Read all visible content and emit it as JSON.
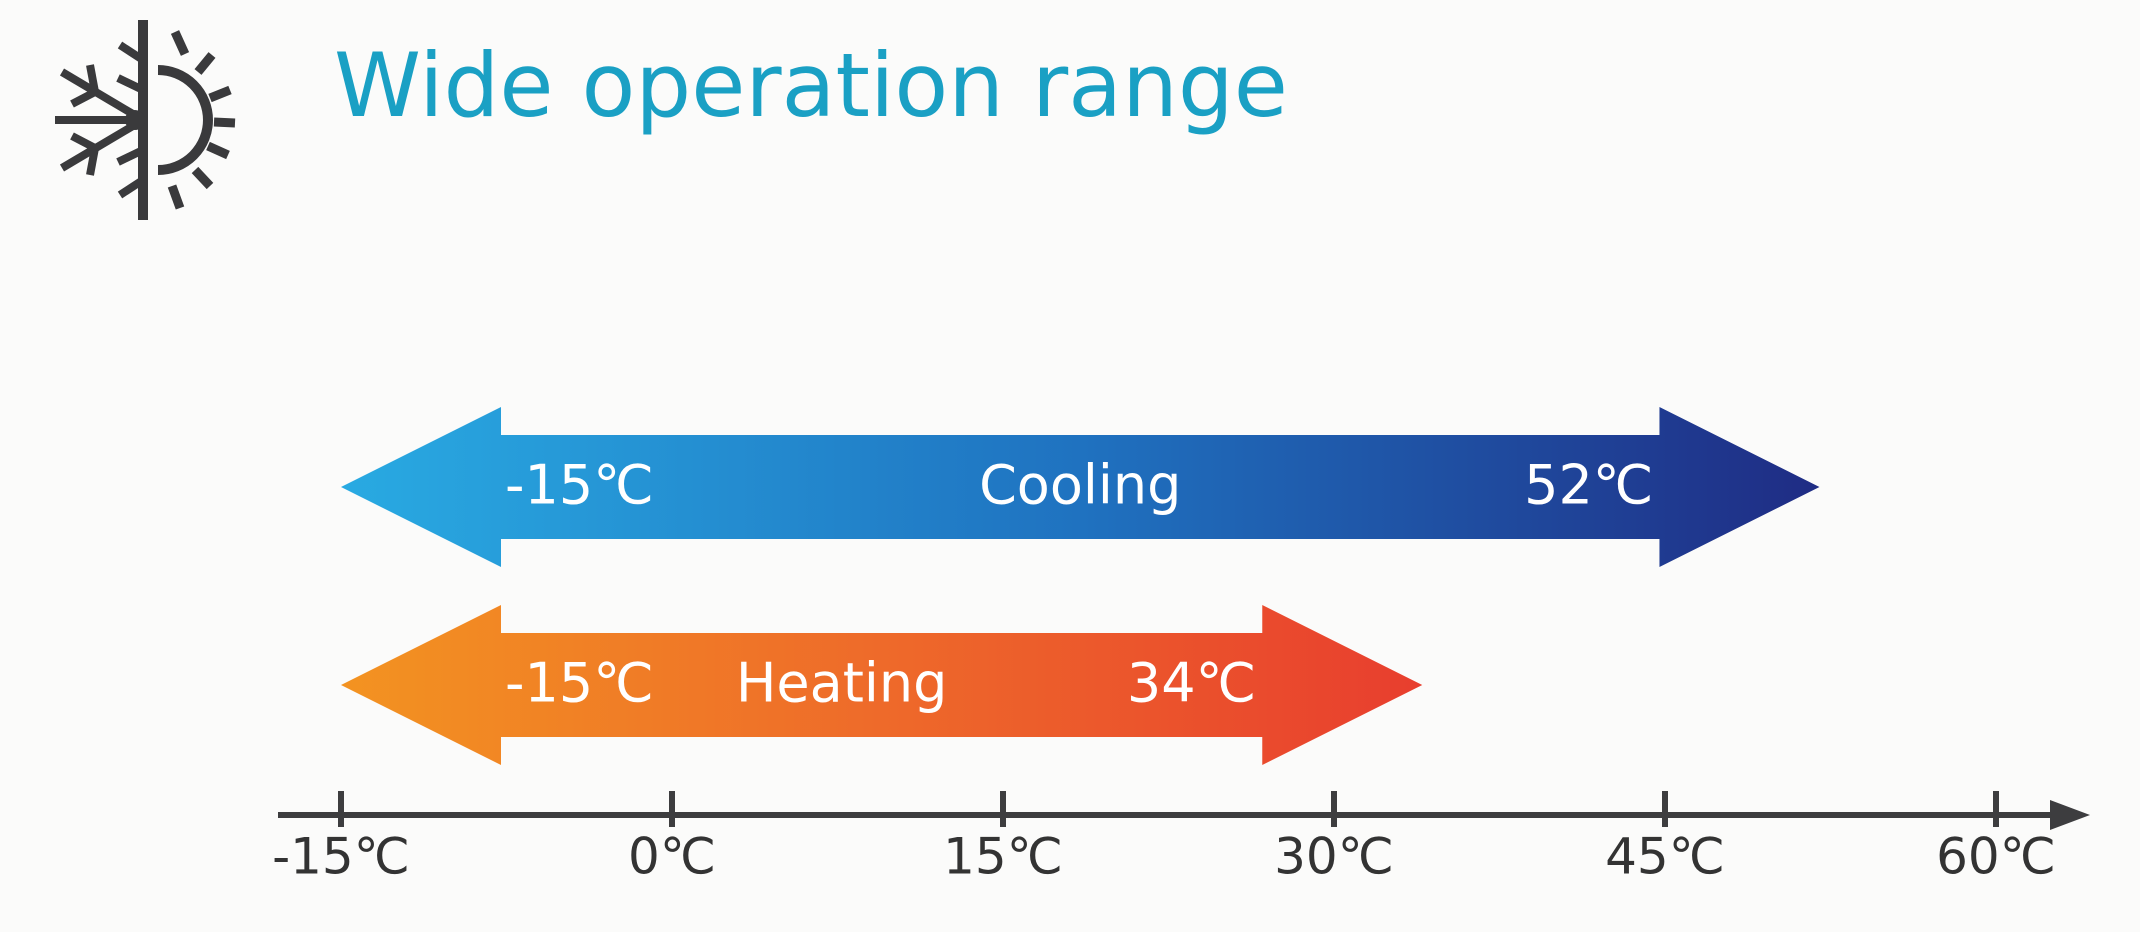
{
  "chart_data": {
    "type": "range",
    "title": "Wide operation range",
    "title_color": "#1aa0c4",
    "xlim": [
      -15,
      60
    ],
    "xticks": [
      {
        "value": -15,
        "label": "-15℃"
      },
      {
        "value": 0,
        "label": "0℃"
      },
      {
        "value": 15,
        "label": "15℃"
      },
      {
        "value": 30,
        "label": "30℃"
      },
      {
        "value": 45,
        "label": "45℃"
      },
      {
        "value": 60,
        "label": "60℃"
      }
    ],
    "series": [
      {
        "name": "Cooling",
        "colors": [
          "#29aae2",
          "#1f72c0",
          "#1f2c84"
        ],
        "values": [
          -15,
          52
        ],
        "value_labels": [
          "-15℃",
          "52℃"
        ]
      },
      {
        "name": "Heating",
        "colors": [
          "#f39321",
          "#ee6a2a",
          "#e83e2e"
        ],
        "values": [
          -15,
          34
        ],
        "value_labels": [
          "-15℃",
          "34℃"
        ]
      }
    ]
  }
}
